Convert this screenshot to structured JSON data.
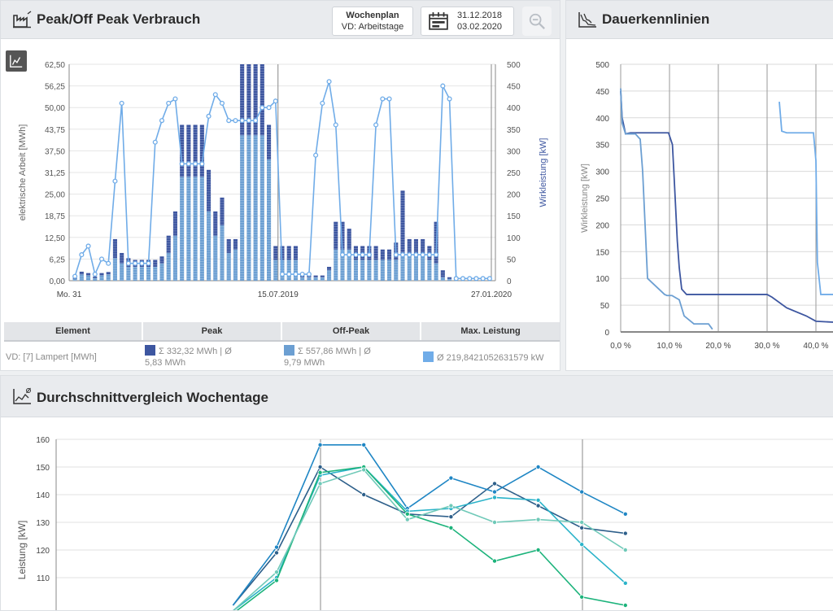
{
  "panel1": {
    "title": "Peak/Off Peak Verbrauch",
    "schedule": {
      "title": "Wochenplan",
      "value": "VD: Arbeitstage"
    },
    "date_range": {
      "start": "31.12.2018",
      "end": "03.02.2020"
    },
    "table": {
      "headers": [
        "Element",
        "Peak",
        "Off-Peak",
        "Max. Leistung"
      ],
      "row": {
        "element": "VD: [7] Lampert [MWh]",
        "peak_line1": "Σ 332,32 MWh | Ø",
        "peak_line2": "5,83 MWh",
        "offpeak_line1": "Σ 557,86 MWh | Ø",
        "offpeak_line2": "9,79 MWh",
        "max": "Ø 219,8421052631579 kW"
      }
    }
  },
  "panel2": {
    "title": "Dauerkennlinien"
  },
  "panel3": {
    "title": "Durchschnittvergleich Wochentage"
  },
  "colors": {
    "peak": "#3d56a0",
    "offpeak": "#6c9fd2",
    "power": "#70ace8"
  },
  "chart_data": [
    {
      "type": "bar",
      "x_tick_labels": [
        "Mo. 31",
        "15.07.2019",
        "27.01.2020"
      ],
      "ylabel": "elektrische Arbeit [MWh]",
      "y2label": "Wirkleistung [kW]",
      "ylim": [
        0,
        62.5
      ],
      "y2lim": [
        0,
        500
      ],
      "y_ticks": [
        "0,00",
        "6,25",
        "12,50",
        "18,75",
        "25,00",
        "31,25",
        "37,50",
        "43,75",
        "50,00",
        "56,25",
        "62,50"
      ],
      "y2_ticks": [
        "0",
        "50",
        "100",
        "150",
        "200",
        "250",
        "300",
        "350",
        "400",
        "450",
        "500"
      ],
      "series": [
        {
          "values": [
            0.5,
            1.8,
            1.5,
            0.8,
            1.5,
            1.8,
            6.5,
            5,
            4,
            4,
            4,
            4,
            4,
            5,
            8,
            13,
            30,
            30,
            30,
            30,
            20,
            13,
            16,
            8,
            9,
            42,
            42,
            42,
            42,
            35,
            6,
            6,
            6,
            6,
            1,
            1,
            1,
            1,
            3,
            9,
            9,
            9,
            6,
            6,
            6,
            6,
            6,
            6,
            6,
            8,
            8,
            8,
            8,
            6,
            5,
            1,
            0.5,
            0.5,
            0.3,
            0.3,
            0.3,
            0.3,
            0.3
          ]
        },
        {
          "values": [
            0.3,
            0.8,
            0.7,
            0.4,
            0.7,
            0.7,
            5.5,
            3,
            2.5,
            2,
            2,
            2,
            2,
            2,
            5,
            7,
            15,
            15,
            15,
            15,
            12,
            7,
            8,
            4,
            3,
            22,
            22,
            22,
            22,
            10,
            4,
            4,
            4,
            4,
            0.5,
            0.5,
            0.5,
            0.5,
            1,
            8,
            8,
            6,
            4,
            4,
            4,
            4,
            3,
            3,
            5,
            18,
            4,
            4,
            4,
            4,
            12,
            2,
            0.5,
            0.5,
            0.3,
            0.3,
            0.3,
            0.3,
            0.3
          ]
        },
        {
          "values": [
            10,
            60,
            80,
            15,
            50,
            40,
            230,
            410,
            40,
            40,
            40,
            40,
            320,
            370,
            410,
            420,
            270,
            270,
            270,
            270,
            380,
            430,
            410,
            370,
            370,
            370,
            370,
            370,
            400,
            400,
            415,
            15,
            15,
            15,
            15,
            15,
            290,
            410,
            460,
            360,
            60,
            60,
            60,
            60,
            60,
            360,
            420,
            420,
            60,
            60,
            60,
            60,
            60,
            60,
            60,
            450,
            420,
            5,
            5,
            5,
            5,
            5,
            5
          ]
        }
      ]
    },
    {
      "type": "line",
      "ylabel": "Wirkleistung [kW]",
      "y_ticks": [
        "0",
        "50",
        "100",
        "150",
        "200",
        "250",
        "300",
        "350",
        "400",
        "450",
        "500"
      ],
      "x_ticks": [
        "0,0 %",
        "10,0 %",
        "20,0 %",
        "30,0 %",
        "40,0 %"
      ],
      "ylim": [
        0,
        500
      ],
      "series": [
        {
          "x": [
            0,
            0.3,
            1,
            2,
            5,
            9.8,
            10.6,
            11,
            11.6,
            12,
            12.5,
            13.5,
            20,
            25,
            30,
            31,
            34,
            38,
            40,
            44
          ],
          "values": [
            450,
            400,
            370,
            372,
            372,
            372,
            350,
            280,
            170,
            120,
            80,
            70,
            70,
            70,
            70,
            65,
            45,
            30,
            20,
            18
          ]
        },
        {
          "x": [
            0,
            0.3,
            1,
            2,
            3,
            4,
            4.5,
            5,
            5.5,
            9,
            9.5,
            10.5,
            12,
            13,
            15,
            18,
            18.8
          ],
          "values": [
            455,
            390,
            370,
            370,
            370,
            360,
            300,
            200,
            100,
            70,
            68,
            68,
            60,
            30,
            15,
            15,
            5
          ]
        },
        {
          "x": [
            32.5,
            33,
            34,
            39.5,
            40,
            40.3,
            41,
            44
          ],
          "values": [
            430,
            375,
            372,
            372,
            320,
            130,
            70,
            70
          ]
        }
      ]
    },
    {
      "type": "line",
      "ylabel": "Leistung [kW]",
      "y_ticks": [
        "110",
        "120",
        "130",
        "140",
        "150",
        "160"
      ],
      "ylim": [
        103,
        162
      ],
      "series": [
        {
          "x": [
            4,
            6,
            8,
            10,
            12,
            14,
            16,
            18,
            20,
            22
          ],
          "values": [
            100,
            119,
            150,
            140,
            133,
            132,
            144,
            136,
            128,
            126
          ]
        },
        {
          "x": [
            4,
            6,
            8,
            10,
            12,
            14,
            16,
            18,
            20,
            22
          ],
          "values": [
            100,
            121,
            158,
            158,
            135,
            146,
            141,
            150,
            141,
            133
          ]
        },
        {
          "x": [
            4,
            6,
            8,
            10,
            12,
            14,
            16,
            18,
            20,
            22
          ],
          "values": [
            98,
            110,
            147,
            150,
            134,
            135,
            139,
            138,
            122,
            108
          ]
        },
        {
          "x": [
            4,
            6,
            8,
            10,
            12,
            14,
            16,
            18,
            20,
            22
          ],
          "values": [
            97,
            109,
            148,
            150,
            133,
            128,
            116,
            120,
            103,
            100
          ]
        },
        {
          "x": [
            4,
            6,
            8,
            10,
            12,
            14,
            16,
            18,
            20,
            22
          ],
          "values": [
            98,
            112,
            144,
            149,
            131,
            136,
            130,
            131,
            130,
            120
          ]
        }
      ]
    }
  ]
}
